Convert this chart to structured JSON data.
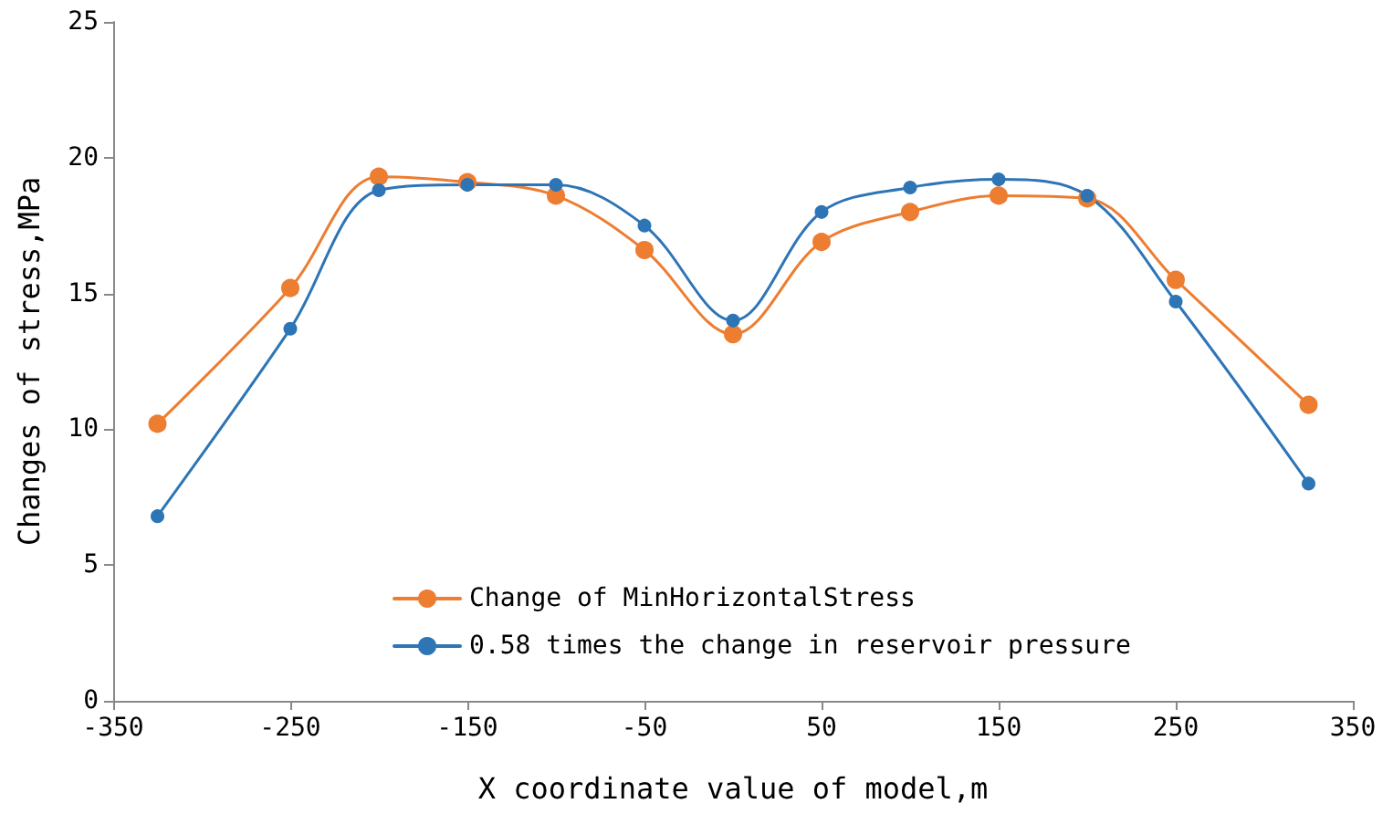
{
  "chart_data": {
    "type": "line",
    "xlabel": "X coordinate value of model,m",
    "ylabel": "Changes of stress,MPa",
    "xlim": [
      -350,
      350
    ],
    "xticks": [
      -350,
      -250,
      -150,
      -50,
      50,
      150,
      250,
      350
    ],
    "ylim": [
      0,
      25
    ],
    "yticks": [
      0,
      5,
      10,
      15,
      20,
      25
    ],
    "x": [
      -325,
      -250,
      -200,
      -150,
      -100,
      -50,
      0,
      50,
      100,
      150,
      200,
      250,
      325
    ],
    "series": [
      {
        "name": "Change of MinHorizontalStress",
        "color": "#ed7d31",
        "values": [
          10.2,
          15.2,
          19.3,
          19.1,
          18.6,
          16.6,
          13.5,
          16.9,
          18.0,
          18.6,
          18.5,
          15.5,
          10.9
        ]
      },
      {
        "name": "0.58 times the change in reservoir pressure",
        "color": "#2e75b6",
        "values": [
          6.8,
          13.7,
          18.8,
          19.0,
          19.0,
          17.5,
          14.0,
          18.0,
          18.9,
          19.2,
          18.6,
          14.7,
          8.0
        ]
      }
    ],
    "grid": false,
    "legend": "bottom",
    "marker": "circle",
    "line_style": "solid"
  }
}
